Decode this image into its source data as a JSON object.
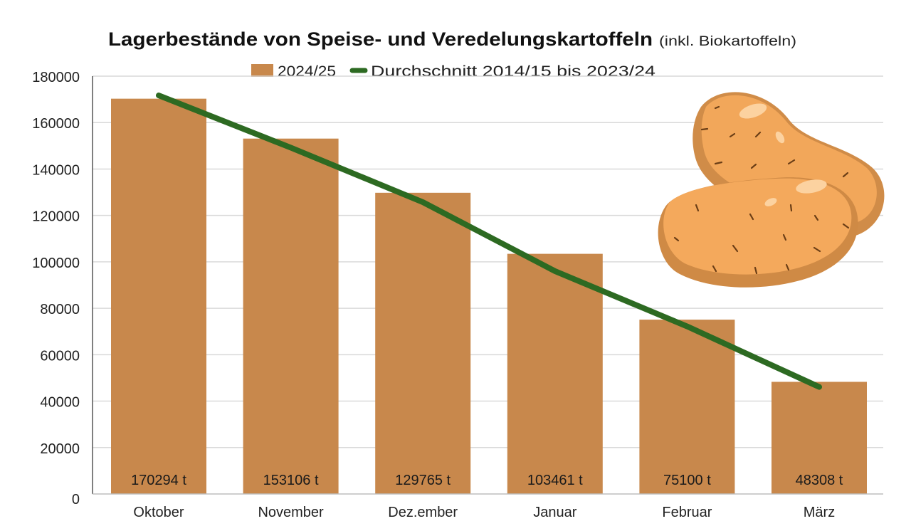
{
  "chart_data": {
    "type": "bar",
    "title": "Lagerbestände von Speise- und Veredelungskartoffeln",
    "subtitle": "(inkl. Biokartoffeln)",
    "xlabel": "",
    "ylabel": "",
    "ylim": [
      0,
      180000
    ],
    "yticks": [
      "0",
      "20000",
      "40000",
      "60000",
      "80000",
      "100000",
      "120000",
      "140000",
      "160000",
      "180000"
    ],
    "ytick_values": [
      0,
      20000,
      40000,
      60000,
      80000,
      100000,
      120000,
      140000,
      160000,
      180000
    ],
    "grid": true,
    "legend_position": "top-center",
    "categories": [
      "Oktober",
      "November",
      "Dez.ember",
      "Januar",
      "Februar",
      "März"
    ],
    "series": [
      {
        "name": "2024/25",
        "type": "bar",
        "color": "#c8884c",
        "values": [
          170294,
          153106,
          129765,
          103461,
          75100,
          48308
        ],
        "labels": [
          "170294 t",
          "153106 t",
          "129765 t",
          "103461 t",
          "75100 t",
          "48308 t"
        ]
      },
      {
        "name": "Durchschnitt 2014/15 bis 2023/24",
        "type": "line",
        "color": "#2d6a22",
        "values": [
          171700,
          149200,
          125700,
          96000,
          72200,
          46100
        ]
      }
    ],
    "decoration": "potato-illustration"
  }
}
